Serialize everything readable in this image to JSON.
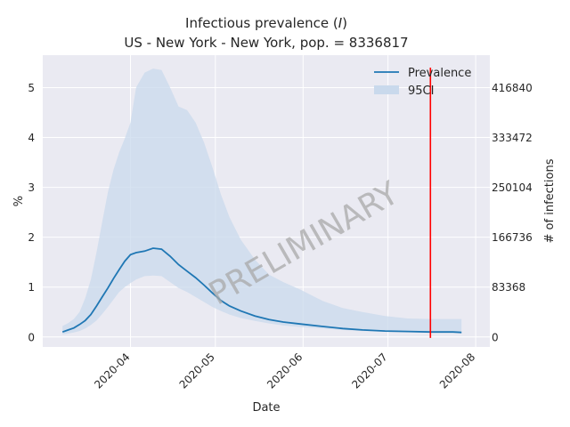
{
  "chart_data": {
    "type": "line",
    "title_line1_prefix": "Infectious prevalence (",
    "title_line1_italic": "I",
    "title_line1_suffix": ")",
    "title_line2": "US - New York - New York, pop. = 8336817",
    "xlabel": "Date",
    "ylabel": "%",
    "y2label": "# of infections",
    "watermark": "PRELIMINARY",
    "x_ticks": [
      "2020-04",
      "2020-05",
      "2020-06",
      "2020-07",
      "2020-08"
    ],
    "y_ticks": [
      "0",
      "1",
      "2",
      "3",
      "4",
      "5"
    ],
    "y2_ticks": [
      "0",
      "83368",
      "166736",
      "250104",
      "333472",
      "416840"
    ],
    "ylim": [
      -0.2,
      5.65
    ],
    "grid": true,
    "legend_position": "top-right",
    "legend": [
      {
        "label": "Prevalence",
        "kind": "line"
      },
      {
        "label": "95CI",
        "kind": "band"
      }
    ],
    "vertical_marker": {
      "date": "2020-07-16",
      "color": "#ff0000"
    },
    "colors": {
      "prevalence": "#1f77b4",
      "band": "#c9d9ec",
      "background": "#eaeaf2",
      "grid": "#ffffff",
      "marker": "#ff0000",
      "watermark": "#a8a8a8"
    },
    "series": [
      {
        "name": "Prevalence",
        "x": [
          "2020-03-08",
          "2020-03-10",
          "2020-03-12",
          "2020-03-14",
          "2020-03-16",
          "2020-03-18",
          "2020-03-20",
          "2020-03-22",
          "2020-03-24",
          "2020-03-26",
          "2020-03-28",
          "2020-03-30",
          "2020-04-01",
          "2020-04-03",
          "2020-04-06",
          "2020-04-09",
          "2020-04-12",
          "2020-04-15",
          "2020-04-18",
          "2020-04-21",
          "2020-04-24",
          "2020-04-27",
          "2020-04-30",
          "2020-05-03",
          "2020-05-06",
          "2020-05-10",
          "2020-05-15",
          "2020-05-20",
          "2020-05-25",
          "2020-05-31",
          "2020-06-08",
          "2020-06-15",
          "2020-06-22",
          "2020-06-30",
          "2020-07-08",
          "2020-07-16",
          "2020-07-24",
          "2020-07-27"
        ],
        "values": [
          0.1,
          0.14,
          0.18,
          0.25,
          0.33,
          0.45,
          0.62,
          0.8,
          0.98,
          1.17,
          1.35,
          1.52,
          1.65,
          1.69,
          1.72,
          1.78,
          1.76,
          1.62,
          1.45,
          1.32,
          1.19,
          1.04,
          0.88,
          0.73,
          0.62,
          0.52,
          0.42,
          0.35,
          0.3,
          0.26,
          0.21,
          0.17,
          0.14,
          0.12,
          0.11,
          0.1,
          0.1,
          0.09
        ]
      },
      {
        "name": "95CI",
        "x": [
          "2020-03-08",
          "2020-03-10",
          "2020-03-12",
          "2020-03-14",
          "2020-03-16",
          "2020-03-18",
          "2020-03-20",
          "2020-03-22",
          "2020-03-24",
          "2020-03-26",
          "2020-03-28",
          "2020-03-30",
          "2020-04-01",
          "2020-04-03",
          "2020-04-06",
          "2020-04-09",
          "2020-04-12",
          "2020-04-15",
          "2020-04-18",
          "2020-04-21",
          "2020-04-24",
          "2020-04-27",
          "2020-04-30",
          "2020-05-03",
          "2020-05-06",
          "2020-05-10",
          "2020-05-15",
          "2020-05-20",
          "2020-05-25",
          "2020-05-31",
          "2020-06-08",
          "2020-06-15",
          "2020-06-22",
          "2020-06-30",
          "2020-07-08",
          "2020-07-16",
          "2020-07-24",
          "2020-07-27"
        ],
        "lower": [
          0.05,
          0.07,
          0.09,
          0.12,
          0.17,
          0.24,
          0.33,
          0.46,
          0.6,
          0.75,
          0.9,
          1.0,
          1.08,
          1.15,
          1.22,
          1.23,
          1.22,
          1.1,
          0.98,
          0.9,
          0.8,
          0.7,
          0.6,
          0.52,
          0.45,
          0.38,
          0.32,
          0.27,
          0.23,
          0.2,
          0.17,
          0.14,
          0.12,
          0.11,
          0.1,
          0.09,
          0.09,
          0.09
        ],
        "upper": [
          0.22,
          0.28,
          0.36,
          0.5,
          0.78,
          1.15,
          1.7,
          2.3,
          2.9,
          3.35,
          3.7,
          3.98,
          4.3,
          5.0,
          5.3,
          5.38,
          5.35,
          5.0,
          4.62,
          4.55,
          4.3,
          3.9,
          3.4,
          2.85,
          2.4,
          1.95,
          1.55,
          1.25,
          1.1,
          0.95,
          0.72,
          0.58,
          0.5,
          0.42,
          0.37,
          0.36,
          0.36,
          0.36
        ]
      }
    ]
  }
}
